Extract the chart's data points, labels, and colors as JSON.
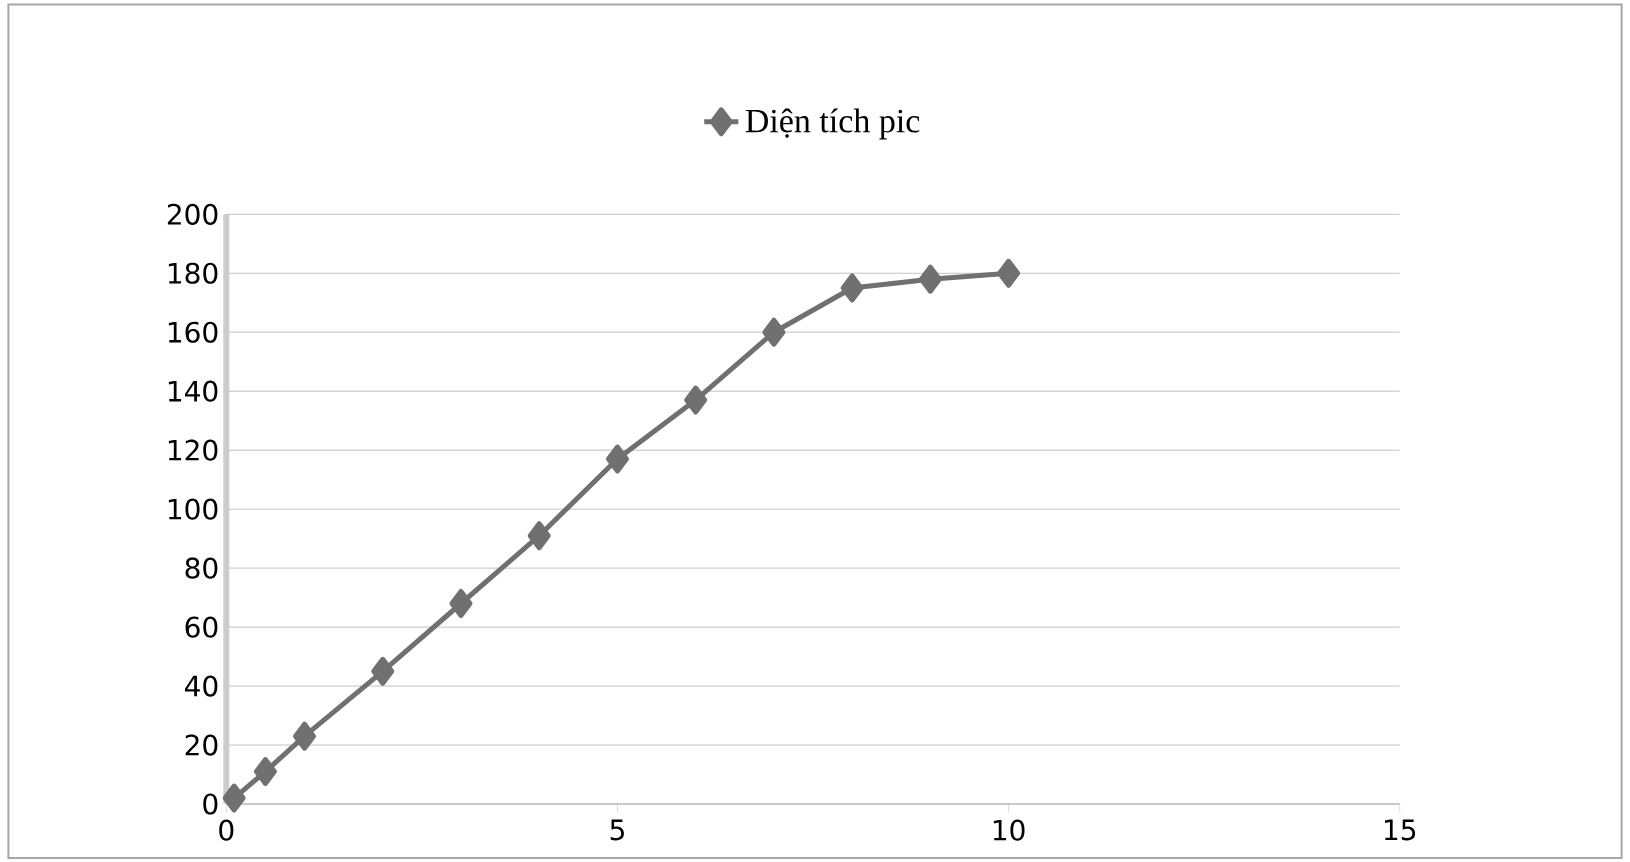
{
  "chart_data": {
    "type": "line",
    "x": [
      0.1,
      0.5,
      1,
      2,
      3,
      4,
      5,
      6,
      7,
      8,
      9,
      10
    ],
    "series": [
      {
        "name": "Diện tích pic",
        "color": "#707070",
        "values": [
          2,
          11,
          23,
          45,
          68,
          91,
          117,
          137,
          160,
          175,
          178,
          180
        ]
      }
    ],
    "xlim": [
      0,
      15
    ],
    "xticks": [
      0,
      5,
      10,
      15
    ],
    "ylim": [
      0,
      200
    ],
    "yticks": [
      0,
      20,
      40,
      60,
      80,
      100,
      120,
      140,
      160,
      180,
      200
    ],
    "grid": "y",
    "legend": "top",
    "marker": "diamond",
    "line_style": "solid"
  }
}
